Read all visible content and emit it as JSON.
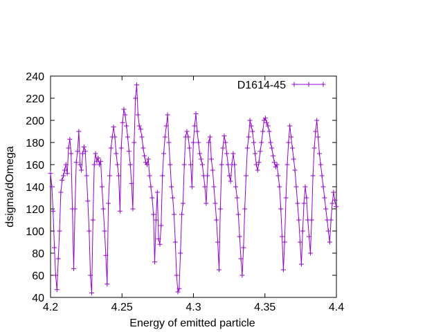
{
  "chart_data": {
    "type": "line",
    "title": "",
    "xlabel": "Energy of emitted particle",
    "ylabel": "dsigma/dOmega",
    "xlim": [
      4.2,
      4.4
    ],
    "ylim": [
      40,
      240
    ],
    "grid": false,
    "legend_position": "top-right",
    "xticks": [
      {
        "value": 4.2,
        "label": "4.2"
      },
      {
        "value": 4.25,
        "label": "4.25"
      },
      {
        "value": 4.3,
        "label": "4.3"
      },
      {
        "value": 4.35,
        "label": "4.35"
      },
      {
        "value": 4.4,
        "label": "4.4"
      }
    ],
    "yticks": [
      {
        "value": 40,
        "label": "40"
      },
      {
        "value": 60,
        "label": "60"
      },
      {
        "value": 80,
        "label": "80"
      },
      {
        "value": 100,
        "label": "100"
      },
      {
        "value": 120,
        "label": "120"
      },
      {
        "value": 140,
        "label": "140"
      },
      {
        "value": 160,
        "label": "160"
      },
      {
        "value": 180,
        "label": "180"
      },
      {
        "value": 200,
        "label": "200"
      },
      {
        "value": 220,
        "label": "220"
      },
      {
        "value": 240,
        "label": "240"
      }
    ],
    "series": [
      {
        "name": "D1614-45",
        "color": "#9400d3",
        "marker": "plus",
        "points": [
          [
            4.2,
            152
          ],
          [
            4.2009,
            140
          ],
          [
            4.2018,
            118
          ],
          [
            4.2027,
            85
          ],
          [
            4.2036,
            60
          ],
          [
            4.2045,
            47
          ],
          [
            4.2054,
            75
          ],
          [
            4.2063,
            100
          ],
          [
            4.2072,
            135
          ],
          [
            4.2081,
            146
          ],
          [
            4.209,
            150
          ],
          [
            4.2099,
            155
          ],
          [
            4.2108,
            160
          ],
          [
            4.2117,
            152
          ],
          [
            4.2126,
            175
          ],
          [
            4.2135,
            183
          ],
          [
            4.2144,
            170
          ],
          [
            4.2153,
            120
          ],
          [
            4.2162,
            66
          ],
          [
            4.2171,
            120
          ],
          [
            4.218,
            162
          ],
          [
            4.2189,
            172
          ],
          [
            4.2198,
            190
          ],
          [
            4.2207,
            160
          ],
          [
            4.2216,
            155
          ],
          [
            4.2225,
            170
          ],
          [
            4.2234,
            176
          ],
          [
            4.2243,
            172
          ],
          [
            4.2252,
            150
          ],
          [
            4.2261,
            127
          ],
          [
            4.227,
            100
          ],
          [
            4.2279,
            60
          ],
          [
            4.2288,
            44
          ],
          [
            4.2297,
            110
          ],
          [
            4.2306,
            160
          ],
          [
            4.2315,
            170
          ],
          [
            4.2324,
            163
          ],
          [
            4.2333,
            166
          ],
          [
            4.2342,
            160
          ],
          [
            4.2351,
            163
          ],
          [
            4.236,
            140
          ],
          [
            4.2369,
            120
          ],
          [
            4.2378,
            100
          ],
          [
            4.2387,
            78
          ],
          [
            4.2396,
            52
          ],
          [
            4.2405,
            125
          ],
          [
            4.2414,
            150
          ],
          [
            4.2423,
            175
          ],
          [
            4.2432,
            185
          ],
          [
            4.2441,
            194
          ],
          [
            4.245,
            185
          ],
          [
            4.2459,
            170
          ],
          [
            4.2468,
            160
          ],
          [
            4.2477,
            150
          ],
          [
            4.2486,
            118
          ],
          [
            4.2495,
            175
          ],
          [
            4.2504,
            198
          ],
          [
            4.2513,
            210
          ],
          [
            4.2522,
            205
          ],
          [
            4.2531,
            195
          ],
          [
            4.254,
            185
          ],
          [
            4.2549,
            172
          ],
          [
            4.2558,
            160
          ],
          [
            4.2567,
            143
          ],
          [
            4.2576,
            120
          ],
          [
            4.2585,
            180
          ],
          [
            4.2594,
            220
          ],
          [
            4.2603,
            232
          ],
          [
            4.2612,
            205
          ],
          [
            4.2621,
            195
          ],
          [
            4.263,
            192
          ],
          [
            4.2639,
            185
          ],
          [
            4.2648,
            175
          ],
          [
            4.2657,
            168
          ],
          [
            4.2666,
            162
          ],
          [
            4.2675,
            160
          ],
          [
            4.2684,
            165
          ],
          [
            4.2693,
            150
          ],
          [
            4.2702,
            140
          ],
          [
            4.2711,
            130
          ],
          [
            4.272,
            115
          ],
          [
            4.2729,
            72
          ],
          [
            4.2738,
            110
          ],
          [
            4.2747,
            135
          ],
          [
            4.2756,
            93
          ],
          [
            4.2765,
            88
          ],
          [
            4.2774,
            105
          ],
          [
            4.2783,
            150
          ],
          [
            4.2792,
            170
          ],
          [
            4.2801,
            185
          ],
          [
            4.281,
            195
          ],
          [
            4.2819,
            205
          ],
          [
            4.2828,
            180
          ],
          [
            4.2837,
            160
          ],
          [
            4.2846,
            140
          ],
          [
            4.2855,
            130
          ],
          [
            4.2864,
            115
          ],
          [
            4.2873,
            90
          ],
          [
            4.2882,
            60
          ],
          [
            4.2891,
            45
          ],
          [
            4.29,
            48
          ],
          [
            4.2909,
            80
          ],
          [
            4.2918,
            115
          ],
          [
            4.2927,
            125
          ],
          [
            4.2936,
            160
          ],
          [
            4.2945,
            185
          ],
          [
            4.2954,
            190
          ],
          [
            4.2963,
            185
          ],
          [
            4.2972,
            175
          ],
          [
            4.2981,
            160
          ],
          [
            4.299,
            140
          ],
          [
            4.2999,
            180
          ],
          [
            4.3008,
            195
          ],
          [
            4.3017,
            206
          ],
          [
            4.3026,
            190
          ],
          [
            4.3035,
            180
          ],
          [
            4.3044,
            170
          ],
          [
            4.3053,
            165
          ],
          [
            4.3062,
            160
          ],
          [
            4.3071,
            150
          ],
          [
            4.308,
            140
          ],
          [
            4.3089,
            125
          ],
          [
            4.3098,
            150
          ],
          [
            4.3107,
            180
          ],
          [
            4.3116,
            185
          ],
          [
            4.3125,
            165
          ],
          [
            4.3134,
            155
          ],
          [
            4.3143,
            140
          ],
          [
            4.3152,
            125
          ],
          [
            4.3161,
            110
          ],
          [
            4.317,
            90
          ],
          [
            4.3179,
            65
          ],
          [
            4.3188,
            120
          ],
          [
            4.3197,
            160
          ],
          [
            4.3206,
            175
          ],
          [
            4.3215,
            186
          ],
          [
            4.3224,
            180
          ],
          [
            4.3233,
            170
          ],
          [
            4.3242,
            160
          ],
          [
            4.3251,
            150
          ],
          [
            4.326,
            145
          ],
          [
            4.3269,
            160
          ],
          [
            4.3278,
            170
          ],
          [
            4.3287,
            160
          ],
          [
            4.3296,
            140
          ],
          [
            4.3305,
            130
          ],
          [
            4.3314,
            115
          ],
          [
            4.3323,
            95
          ],
          [
            4.3332,
            75
          ],
          [
            4.3341,
            60
          ],
          [
            4.335,
            85
          ],
          [
            4.3359,
            120
          ],
          [
            4.3368,
            150
          ],
          [
            4.3377,
            175
          ],
          [
            4.3386,
            185
          ],
          [
            4.3395,
            200
          ],
          [
            4.3404,
            195
          ],
          [
            4.3413,
            190
          ],
          [
            4.3422,
            180
          ],
          [
            4.3431,
            170
          ],
          [
            4.344,
            160
          ],
          [
            4.3449,
            155
          ],
          [
            4.3458,
            162
          ],
          [
            4.3467,
            172
          ],
          [
            4.3476,
            180
          ],
          [
            4.3485,
            190
          ],
          [
            4.3494,
            200
          ],
          [
            4.3503,
            202
          ],
          [
            4.3512,
            198
          ],
          [
            4.3521,
            195
          ],
          [
            4.353,
            190
          ],
          [
            4.3539,
            180
          ],
          [
            4.3548,
            175
          ],
          [
            4.3557,
            168
          ],
          [
            4.3566,
            162
          ],
          [
            4.3575,
            158
          ],
          [
            4.3584,
            160
          ],
          [
            4.3593,
            150
          ],
          [
            4.3602,
            140
          ],
          [
            4.3611,
            120
          ],
          [
            4.362,
            95
          ],
          [
            4.3629,
            65
          ],
          [
            4.3638,
            90
          ],
          [
            4.3647,
            130
          ],
          [
            4.3656,
            160
          ],
          [
            4.3665,
            180
          ],
          [
            4.3674,
            195
          ],
          [
            4.3683,
            185
          ],
          [
            4.3692,
            175
          ],
          [
            4.3701,
            165
          ],
          [
            4.371,
            155
          ],
          [
            4.3719,
            140
          ],
          [
            4.3728,
            125
          ],
          [
            4.3737,
            110
          ],
          [
            4.3746,
            90
          ],
          [
            4.3755,
            70
          ],
          [
            4.3764,
            100
          ],
          [
            4.3773,
            125
          ],
          [
            4.3782,
            140
          ],
          [
            4.3791,
            130
          ],
          [
            4.38,
            110
          ],
          [
            4.3809,
            95
          ],
          [
            4.3818,
            80
          ],
          [
            4.3827,
            110
          ],
          [
            4.3836,
            150
          ],
          [
            4.3845,
            175
          ],
          [
            4.3854,
            190
          ],
          [
            4.3863,
            200
          ],
          [
            4.3872,
            185
          ],
          [
            4.3881,
            170
          ],
          [
            4.389,
            160
          ],
          [
            4.3899,
            150
          ],
          [
            4.3908,
            140
          ],
          [
            4.3917,
            130
          ],
          [
            4.3926,
            120
          ],
          [
            4.3935,
            110
          ],
          [
            4.3944,
            100
          ],
          [
            4.3953,
            90
          ],
          [
            4.3962,
            110
          ],
          [
            4.3971,
            125
          ],
          [
            4.398,
            135
          ],
          [
            4.3989,
            128
          ],
          [
            4.3998,
            122
          ]
        ]
      }
    ]
  }
}
